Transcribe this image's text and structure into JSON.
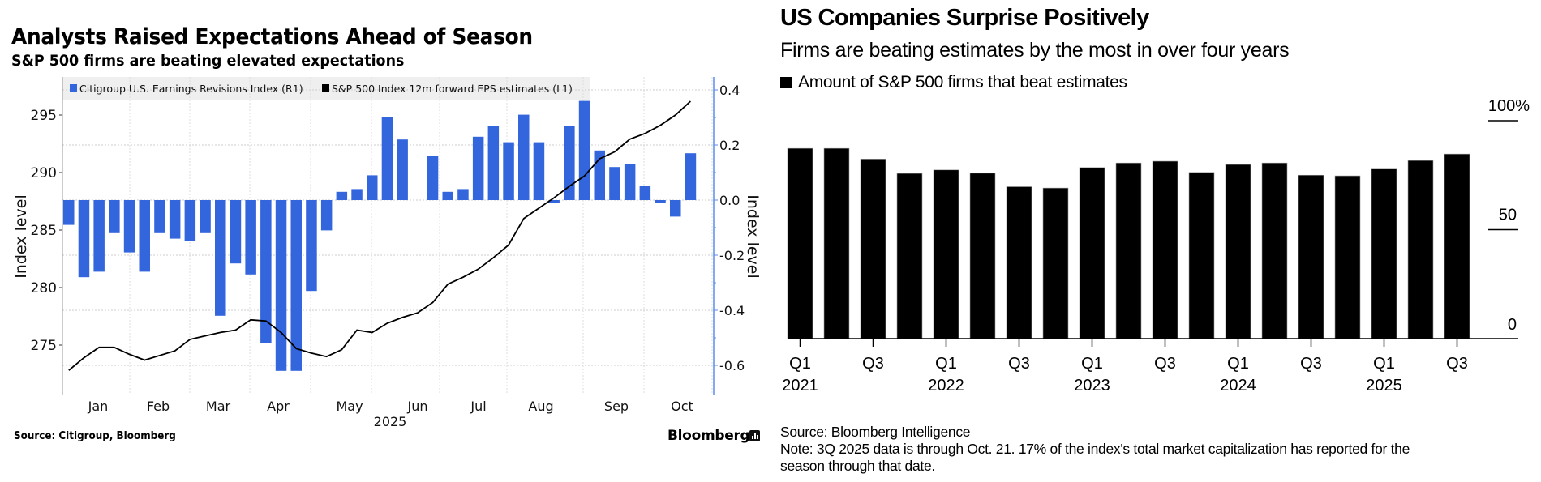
{
  "left": {
    "title": "Analysts Raised Expectations Ahead of Season",
    "subtitle": "S&P 500 firms are beating elevated expectations",
    "source": "Source: Citigroup, Bloomberg",
    "brand": "Bloomberg"
  },
  "right": {
    "title": "US Companies Surprise Positively",
    "subtitle": "Firms are beating estimates by the most in over four years",
    "legend_label": "Amount of S&P 500 firms that beat estimates",
    "source": "Source: Bloomberg Intelligence",
    "note_line1": "Note: 3Q 2025 data is through Oct. 21. 17% of the index's total market capitalization has reported for the",
    "note_line2": "season through that date."
  },
  "colors": {
    "bar_blue": "#3366dd",
    "line_black": "#000000",
    "right_axis_blue": "#5b8def",
    "legend_bg": "#efefef"
  },
  "chart_data": [
    {
      "type": "bar",
      "title": "Analysts Raised Expectations Ahead of Season",
      "subtitle": "S&P 500 firms are beating elevated expectations",
      "x_ticks": [
        "Jan",
        "Feb",
        "Mar",
        "Apr",
        "May",
        "Jun",
        "Jul",
        "Aug",
        "Sep",
        "Oct"
      ],
      "x_year_label": "2025",
      "legend_position": "top-left",
      "grid": true,
      "series": [
        {
          "name": "Citigroup U.S. Earnings Revisions Index (R1)",
          "type": "bar",
          "axis": "right",
          "values": [
            -0.09,
            -0.28,
            -0.26,
            -0.12,
            -0.19,
            -0.26,
            -0.12,
            -0.14,
            -0.15,
            -0.12,
            -0.42,
            -0.23,
            -0.27,
            -0.52,
            -0.62,
            -0.62,
            -0.33,
            -0.11,
            0.03,
            0.04,
            0.09,
            0.3,
            0.22,
            0.0,
            0.16,
            0.03,
            0.04,
            0.23,
            0.27,
            0.21,
            0.31,
            0.21,
            -0.01,
            0.27,
            0.36,
            0.18,
            0.12,
            0.13,
            0.05,
            -0.01,
            -0.06,
            0.17
          ]
        },
        {
          "name": "S&P 500 Index 12m forward EPS estimates (L1)",
          "type": "line",
          "axis": "left",
          "values": [
            272.8,
            273.9,
            274.8,
            274.8,
            274.2,
            273.7,
            274.1,
            274.5,
            275.5,
            275.8,
            276.1,
            276.3,
            277.2,
            277.1,
            276.1,
            274.7,
            274.3,
            274.0,
            274.6,
            276.3,
            276.1,
            276.9,
            277.4,
            277.8,
            278.7,
            280.3,
            280.9,
            281.6,
            282.6,
            283.7,
            286.0,
            286.9,
            287.8,
            288.8,
            289.7,
            291.2,
            291.8,
            292.9,
            293.4,
            294.1,
            295.0,
            296.2
          ]
        }
      ],
      "left_axis": {
        "label": "Index level",
        "ticks": [
          275,
          280,
          285,
          290,
          295
        ],
        "range": [
          271.2,
          298
        ]
      },
      "right_axis": {
        "label": "Index level",
        "ticks": [
          "0.4",
          "0.2",
          "0.0",
          "-0.2",
          "-0.4",
          "-0.6"
        ],
        "tick_values": [
          0.4,
          0.2,
          0.0,
          -0.2,
          -0.4,
          -0.6
        ],
        "range": [
          -0.71,
          0.47
        ]
      }
    },
    {
      "type": "bar",
      "title": "US Companies Surprise Positively",
      "subtitle": "Firms are beating estimates by the most in over four years",
      "legend": [
        "Amount of S&P 500 firms that beat estimates"
      ],
      "legend_position": "top-left",
      "categories": [
        "Q1 2021",
        "Q2 2021",
        "Q3 2021",
        "Q4 2021",
        "Q1 2022",
        "Q2 2022",
        "Q3 2022",
        "Q4 2022",
        "Q1 2023",
        "Q2 2023",
        "Q3 2023",
        "Q4 2023",
        "Q1 2024",
        "Q2 2024",
        "Q3 2024",
        "Q4 2024",
        "Q1 2025",
        "Q2 2025",
        "Q3 2025"
      ],
      "values": [
        87.3,
        87.3,
        82.4,
        75.8,
        77.4,
        75.9,
        69.7,
        69.1,
        78.5,
        80.6,
        81.4,
        76.3,
        79.9,
        80.6,
        75.0,
        74.7,
        77.8,
        81.7,
        84.7
      ],
      "x_tick_labels": [
        {
          "q": "Q1",
          "year": "2021"
        },
        {
          "q": "Q3",
          "year": ""
        },
        {
          "q": "Q1",
          "year": "2022"
        },
        {
          "q": "Q3",
          "year": ""
        },
        {
          "q": "Q1",
          "year": "2023"
        },
        {
          "q": "Q3",
          "year": ""
        },
        {
          "q": "Q1",
          "year": "2024"
        },
        {
          "q": "Q3",
          "year": ""
        },
        {
          "q": "Q1",
          "year": "2025"
        },
        {
          "q": "Q3",
          "year": ""
        }
      ],
      "y_ticks": [
        "100%",
        "50",
        "0"
      ],
      "y_tick_values": [
        100,
        50,
        0
      ],
      "ylim": [
        0,
        100
      ],
      "grid": false
    }
  ]
}
